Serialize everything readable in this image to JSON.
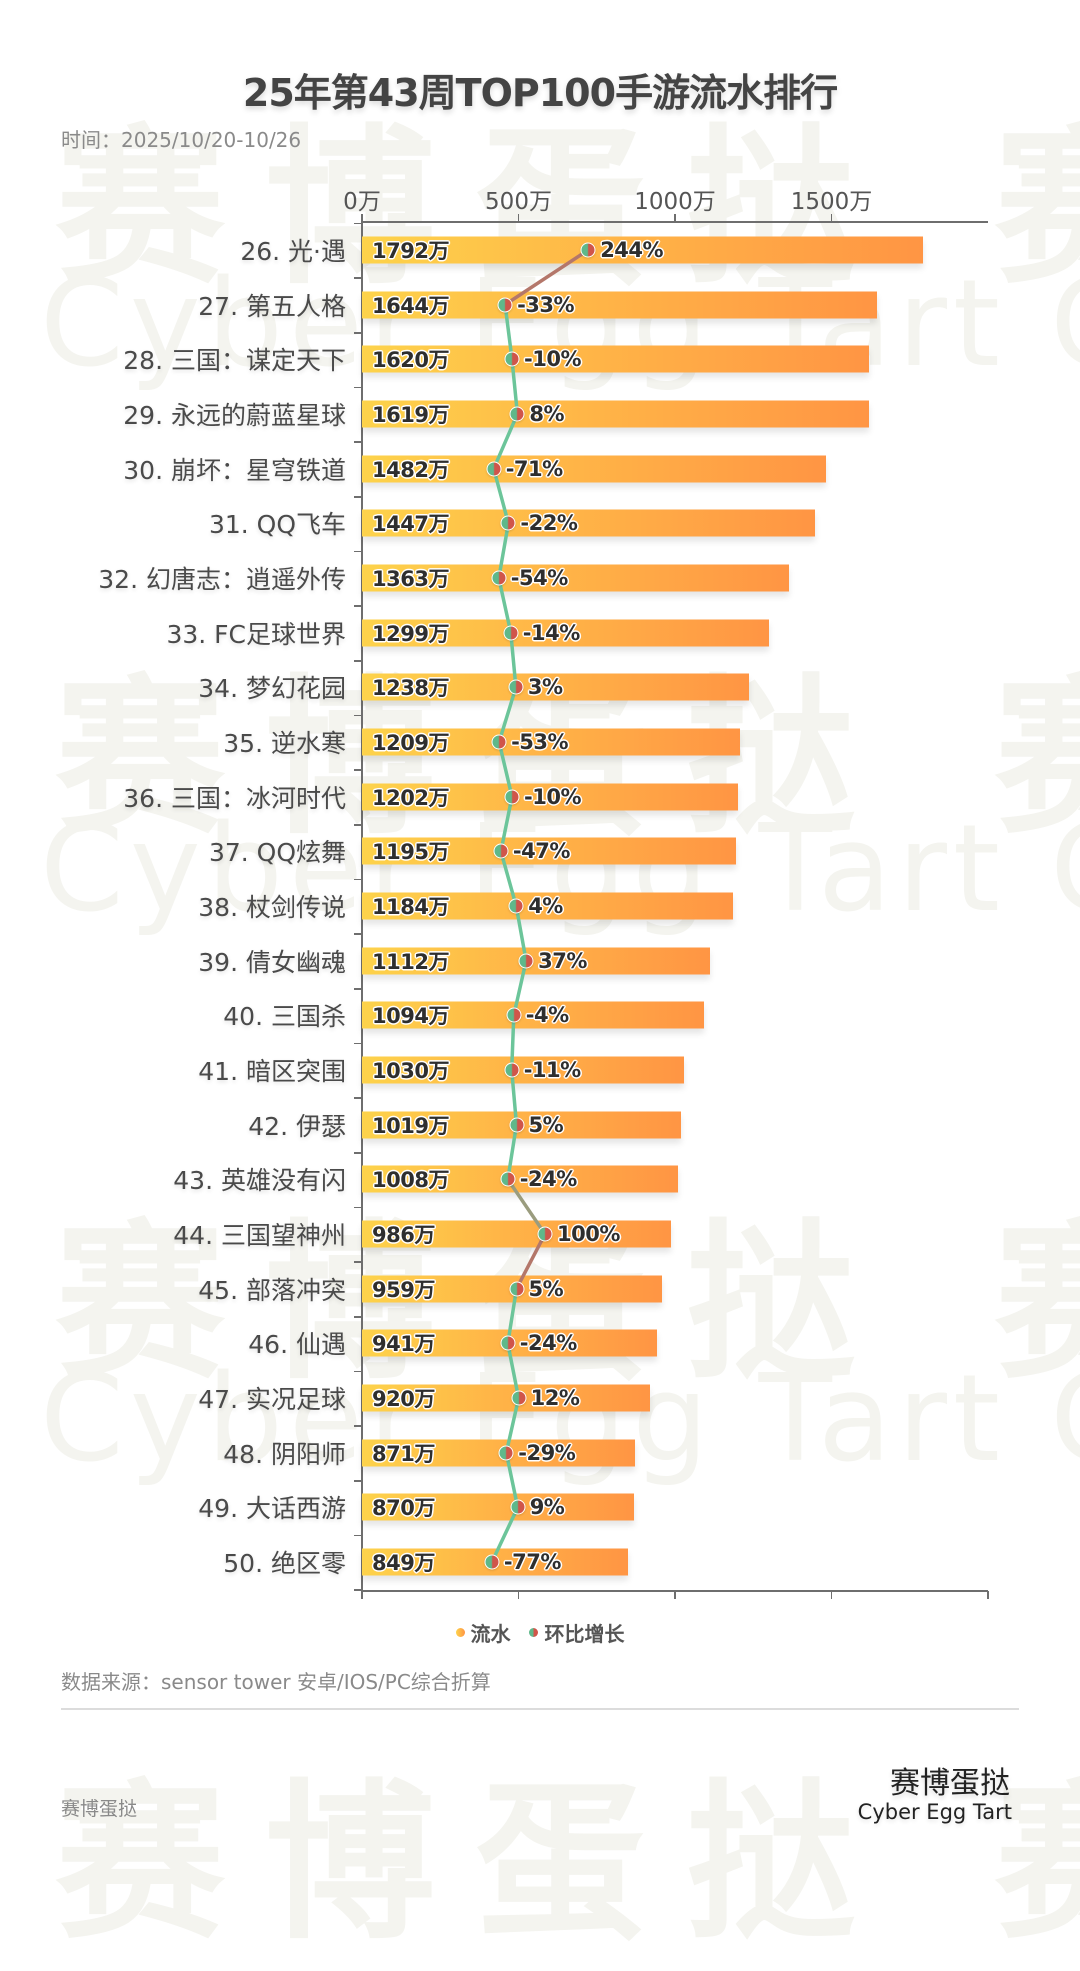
{
  "header": {
    "title": "25年第43周TOP100手游流水排行",
    "subtitle": "时间：2025/10/20-10/26"
  },
  "axis": {
    "tick_labels": [
      "0万",
      "500万",
      "1000万",
      "1500万"
    ],
    "tick_values": [
      0,
      500,
      1000,
      1500,
      2000
    ]
  },
  "legend": {
    "items": [
      {
        "label": "流水",
        "icon": "bar-legend-dot"
      },
      {
        "label": "环比增长",
        "icon": "line-legend-dot"
      }
    ]
  },
  "footer": {
    "source": "数据来源：sensor tower 安卓/IOS/PC综合折算",
    "left_brand": "赛博蛋挞",
    "logo_cn": "赛博蛋挞",
    "logo_en": "Cyber Egg Tart"
  },
  "watermark": {
    "cn": "赛博蛋挞 赛",
    "en": "Cyber Egg Tart Cyb"
  },
  "colors": {
    "bar_start": "#fdd34b",
    "bar_end": "#ff9544",
    "line_green": "#6cc59a",
    "dot_green": "#5fb88a",
    "dot_red": "#d0554a",
    "title": "#444444"
  },
  "chart_data": {
    "type": "bar",
    "title": "25年第43周TOP100手游流水排行",
    "subtitle": "时间：2025/10/20-10/26",
    "xlabel": "",
    "ylabel": "",
    "unit": "万",
    "xlim": [
      0,
      2000
    ],
    "x_ticks": [
      "0万",
      "500万",
      "1000万",
      "1500万"
    ],
    "legend": [
      "流水",
      "环比增长"
    ],
    "legend_position": "bottom",
    "grid": false,
    "categories": [
      "26. 光·遇",
      "27. 第五人格",
      "28. 三国：谋定天下",
      "29. 永远的蔚蓝星球",
      "30. 崩坏：星穹铁道",
      "31. QQ飞车",
      "32. 幻唐志：逍遥外传",
      "33. FC足球世界",
      "34. 梦幻花园",
      "35. 逆水寒",
      "36. 三国：冰河时代",
      "37. QQ炫舞",
      "38. 杖剑传说",
      "39. 倩女幽魂",
      "40. 三国杀",
      "41. 暗区突围",
      "42. 伊瑟",
      "43. 英雄没有闪",
      "44. 三国望神州",
      "45. 部落冲突",
      "46. 仙遇",
      "47. 实况足球",
      "48. 阴阳师",
      "49. 大话西游",
      "50. 绝区零"
    ],
    "series": [
      {
        "name": "流水",
        "type": "bar",
        "unit": "万",
        "values": [
          1792,
          1644,
          1620,
          1619,
          1482,
          1447,
          1363,
          1299,
          1238,
          1209,
          1202,
          1195,
          1184,
          1112,
          1094,
          1030,
          1019,
          1008,
          986,
          959,
          941,
          920,
          871,
          870,
          849
        ],
        "labels": [
          "1792万",
          "1644万",
          "1620万",
          "1619万",
          "1482万",
          "1447万",
          "1363万",
          "1299万",
          "1238万",
          "1209万",
          "1202万",
          "1195万",
          "1184万",
          "1112万",
          "1094万",
          "1030万",
          "1019万",
          "1008万",
          "986万",
          "959万",
          "941万",
          "920万",
          "871万",
          "870万",
          "849万"
        ]
      },
      {
        "name": "环比增长",
        "type": "line",
        "unit": "%",
        "values": [
          244,
          -33,
          -10,
          8,
          -71,
          -22,
          -54,
          -14,
          3,
          -53,
          -10,
          -47,
          4,
          37,
          -4,
          -11,
          5,
          -24,
          100,
          5,
          -24,
          12,
          -29,
          9,
          -77
        ],
        "labels": [
          "244%",
          "-33%",
          "-10%",
          "8%",
          "-71%",
          "-22%",
          "-54%",
          "-14%",
          "3%",
          "-53%",
          "-10%",
          "-47%",
          "4%",
          "37%",
          "-4%",
          "-11%",
          "5%",
          "-24%",
          "100%",
          "5%",
          "-24%",
          "12%",
          "-29%",
          "9%",
          "-77%"
        ]
      }
    ]
  }
}
